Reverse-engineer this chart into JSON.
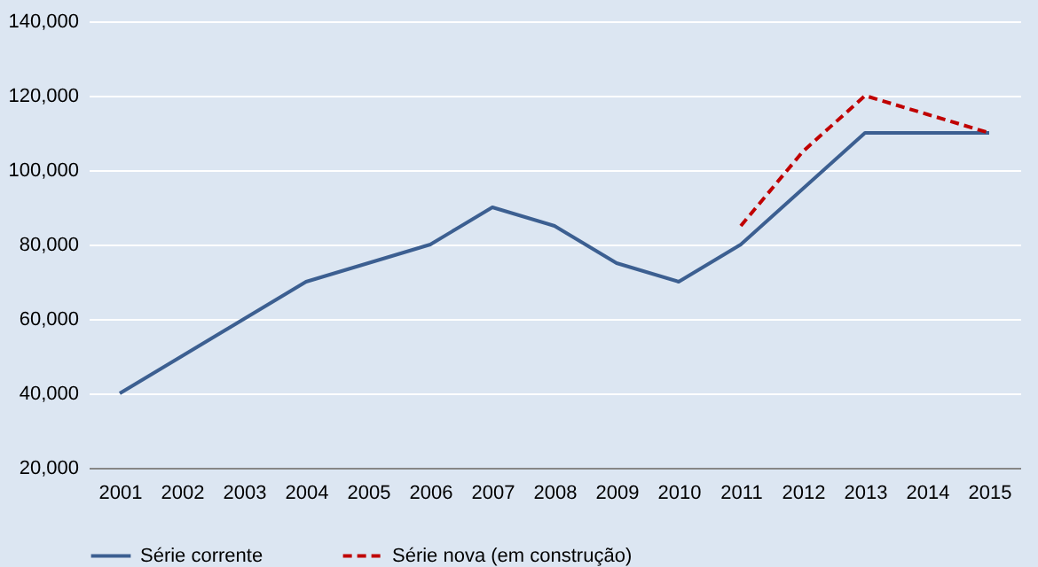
{
  "chart_data": {
    "type": "line",
    "categories": [
      "2001",
      "2002",
      "2003",
      "2004",
      "2005",
      "2006",
      "2007",
      "2008",
      "2009",
      "2010",
      "2011",
      "2012",
      "2013",
      "2014",
      "2015"
    ],
    "series": [
      {
        "name": "Série corrente",
        "color": "#3c5f91",
        "line_style": "solid",
        "values": [
          40000,
          50000,
          60000,
          70000,
          75000,
          80000,
          90000,
          85000,
          75000,
          70000,
          80000,
          95000,
          110000,
          110000,
          110000
        ]
      },
      {
        "name": "Série nova (em construção)",
        "color": "#c00000",
        "line_style": "dashed",
        "values": [
          null,
          null,
          null,
          null,
          null,
          null,
          null,
          null,
          null,
          null,
          85000,
          105000,
          120000,
          115000,
          110000
        ]
      }
    ],
    "ylim": [
      20000,
      140000
    ],
    "yticks": [
      {
        "value": 20000,
        "label": "20,000"
      },
      {
        "value": 40000,
        "label": "40,000"
      },
      {
        "value": 60000,
        "label": "60,000"
      },
      {
        "value": 80000,
        "label": "80,000"
      },
      {
        "value": 100000,
        "label": "100,000"
      },
      {
        "value": 120000,
        "label": "120,000"
      },
      {
        "value": 140000,
        "label": "140,000"
      }
    ],
    "grid": "y",
    "legend": "bottom",
    "marker": "none"
  }
}
